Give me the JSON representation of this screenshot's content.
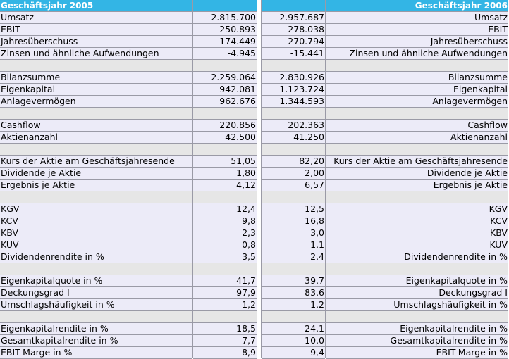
{
  "header": {
    "left_title": "Geschäftsjahr 2005",
    "right_title": "Geschäftsjahr 2006"
  },
  "rows": [
    {
      "type": "data",
      "label": "Umsatz",
      "v2005": "2.815.700",
      "v2006": "2.957.687",
      "label_right": "Umsatz"
    },
    {
      "type": "data",
      "label": "EBIT",
      "v2005": "250.893",
      "v2006": "278.038",
      "label_right": "EBIT"
    },
    {
      "type": "data",
      "label": "Jahresüberschuss",
      "v2005": "174.449",
      "v2006": "270.794",
      "label_right": "Jahresüberschuss"
    },
    {
      "type": "data",
      "label": "Zinsen und ähnliche Aufwendungen",
      "v2005": "-4.945",
      "v2006": "-15.441",
      "label_right": "Zinsen und ähnliche Aufwendungen"
    },
    {
      "type": "sep"
    },
    {
      "type": "data",
      "label": "Bilanzsumme",
      "v2005": "2.259.064",
      "v2006": "2.830.926",
      "label_right": "Bilanzsumme"
    },
    {
      "type": "data",
      "label": "Eigenkapital",
      "v2005": "942.081",
      "v2006": "1.123.724",
      "label_right": "Eigenkapital"
    },
    {
      "type": "data",
      "label": "Anlagevermögen",
      "v2005": "962.676",
      "v2006": "1.344.593",
      "label_right": "Anlagevermögen"
    },
    {
      "type": "sep"
    },
    {
      "type": "data",
      "label": "Cashflow",
      "v2005": "220.856",
      "v2006": "202.363",
      "label_right": "Cashflow"
    },
    {
      "type": "data",
      "label": "Aktienanzahl",
      "v2005": "42.500",
      "v2006": "41.250",
      "label_right": "Aktienanzahl"
    },
    {
      "type": "sep"
    },
    {
      "type": "data",
      "label": "Kurs der Aktie am Geschäftsjahresende",
      "v2005": "51,05",
      "v2006": "82,20",
      "label_right": "Kurs der Aktie am Geschäftsjahresende"
    },
    {
      "type": "data",
      "label": "Dividende je Aktie",
      "v2005": "1,80",
      "v2006": "2,00",
      "label_right": "Dividende je Aktie"
    },
    {
      "type": "data",
      "label": "Ergebnis je Aktie",
      "v2005": "4,12",
      "v2006": "6,57",
      "label_right": "Ergebnis je Aktie"
    },
    {
      "type": "sep"
    },
    {
      "type": "data",
      "label": "KGV",
      "v2005": "12,4",
      "v2006": "12,5",
      "label_right": "KGV"
    },
    {
      "type": "data",
      "label": "KCV",
      "v2005": "9,8",
      "v2006": "16,8",
      "label_right": "KCV"
    },
    {
      "type": "data",
      "label": "KBV",
      "v2005": "2,3",
      "v2006": "3,0",
      "label_right": "KBV"
    },
    {
      "type": "data",
      "label": "KUV",
      "v2005": "0,8",
      "v2006": "1,1",
      "label_right": "KUV"
    },
    {
      "type": "data",
      "label": "Dividendenrendite in %",
      "v2005": "3,5",
      "v2006": "2,4",
      "label_right": "Dividendenrendite in %"
    },
    {
      "type": "sep"
    },
    {
      "type": "data",
      "label": "Eigenkapitalquote in %",
      "v2005": "41,7",
      "v2006": "39,7",
      "label_right": "Eigenkapitalquote in %"
    },
    {
      "type": "data",
      "label": "Deckungsgrad I",
      "v2005": "97,9",
      "v2006": "83,6",
      "label_right": "Deckungsgrad I"
    },
    {
      "type": "data",
      "label": "Umschlagshäufigkeit in %",
      "v2005": "1,2",
      "v2006": "1,2",
      "label_right": "Umschlagshäufigkeit in %"
    },
    {
      "type": "sep"
    },
    {
      "type": "data",
      "label": "Eigenkapitalrendite in %",
      "v2005": "18,5",
      "v2006": "24,1",
      "label_right": "Eigenkapitalrendite in %"
    },
    {
      "type": "data",
      "label": "Gesamtkapitalrendite in %",
      "v2005": "7,7",
      "v2006": "10,0",
      "label_right": "Gesamtkapitalrendite in %"
    },
    {
      "type": "data",
      "label": "EBIT-Marge in %",
      "v2005": "8,9",
      "v2006": "9,4",
      "label_right": "EBIT-Marge in %"
    }
  ]
}
